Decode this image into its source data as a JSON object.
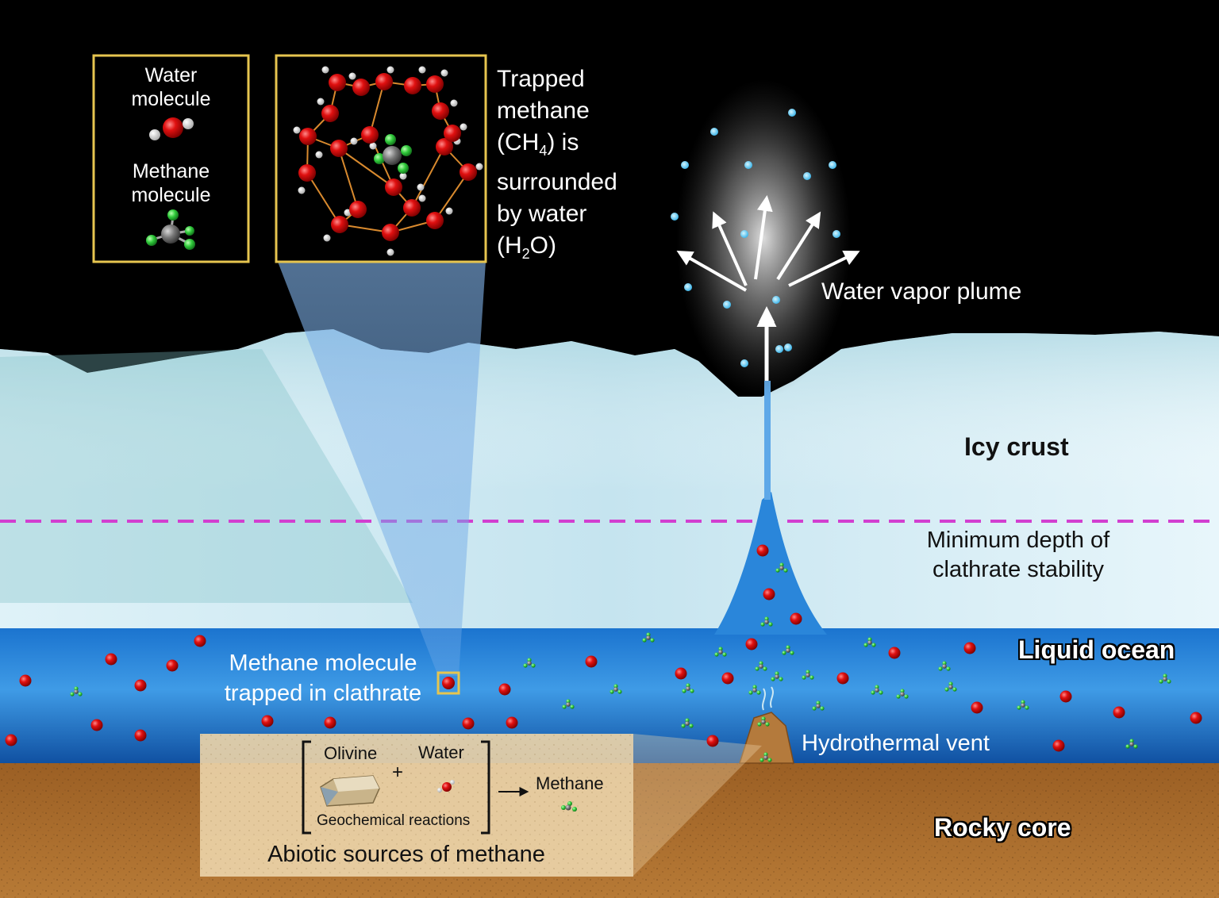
{
  "legend": {
    "water_label": [
      "Water",
      "molecule"
    ],
    "methane_label": [
      "Methane",
      "molecule"
    ]
  },
  "clathrate_caption": {
    "line1": "Trapped",
    "line2": "methane",
    "line3_pre": "(CH",
    "line3_sub": "4",
    "line3_post": ") is",
    "line4": "surrounded",
    "line5": "by water",
    "line6_pre": "(H",
    "line6_sub": "2",
    "line6_post": "O)"
  },
  "layers": {
    "icy_crust": "Icy crust",
    "min_depth": [
      "Minimum depth of",
      "clathrate stability"
    ],
    "liquid_ocean": "Liquid ocean",
    "rocky_core": "Rocky core"
  },
  "features": {
    "plume": "Water vapor plume",
    "vent": "Hydrothermal vent",
    "trapped": [
      "Methane molecule",
      "trapped in clathrate"
    ]
  },
  "inset": {
    "olivine": "Olivine",
    "plus": "+",
    "water": "Water",
    "reactions": "Geochemical reactions",
    "methane": "Methane",
    "title": "Abiotic sources of methane"
  },
  "colors": {
    "space": "#000000",
    "ice": "#cde8f2",
    "ocean": "#1a6fc4",
    "core": "#a9692a",
    "callout_border": "#e6c54f",
    "dashed_line": "#d23fd0"
  }
}
